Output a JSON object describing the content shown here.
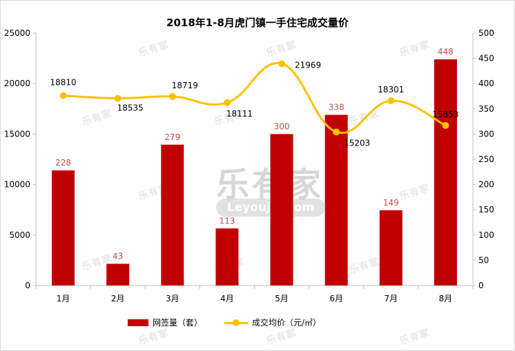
{
  "chart_data": {
    "type": "bar",
    "title": "2018年1-8月虎门镇一手住宅成交量价",
    "categories": [
      "1月",
      "2月",
      "3月",
      "4月",
      "5月",
      "6月",
      "7月",
      "8月"
    ],
    "series": [
      {
        "name": "网签量（套）",
        "type": "bar",
        "axis": "right",
        "values": [
          228,
          43,
          279,
          113,
          300,
          338,
          149,
          448
        ],
        "color": "#C00000"
      },
      {
        "name": "成交均价（元/㎡）",
        "type": "line",
        "axis": "left",
        "values": [
          18810,
          18535,
          18719,
          18111,
          21969,
          15203,
          18301,
          15853
        ],
        "color": "#FFC000"
      }
    ],
    "y_left": {
      "min": 0,
      "max": 25000,
      "ticks": [
        "0",
        "5000",
        "10000",
        "15000",
        "20000",
        "25000"
      ]
    },
    "y_right": {
      "min": 0,
      "max": 500,
      "ticks": [
        "0",
        "50",
        "100",
        "150",
        "200",
        "250",
        "300",
        "350",
        "400",
        "450",
        "500"
      ]
    },
    "legend_position": "bottom",
    "grid": false
  },
  "watermark": {
    "main": "乐有家",
    "sub": "Leyoujia.com"
  }
}
